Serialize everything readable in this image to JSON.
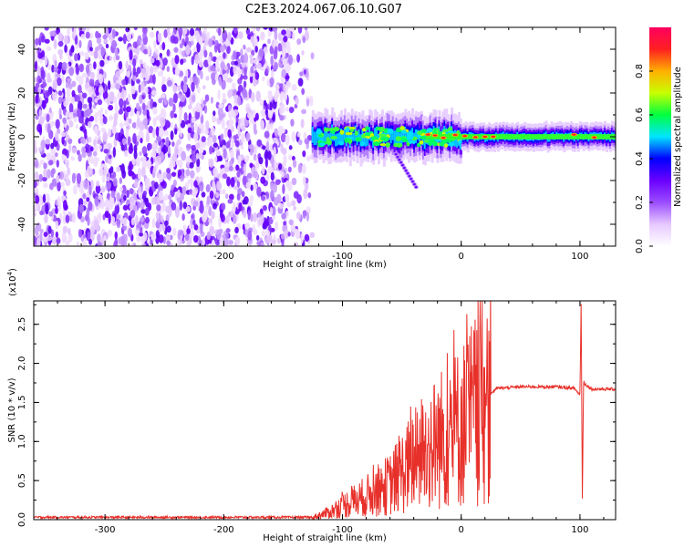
{
  "title": "C2E3.2024.067.06.10.G07",
  "chart_data": [
    {
      "type": "heatmap",
      "panel": "spectrogram",
      "xlabel": "Height of straight line (km)",
      "ylabel": "Frequency (Hz)",
      "xlim": [
        -360,
        130
      ],
      "ylim": [
        -50,
        50
      ],
      "xticks": [
        -300,
        -200,
        -100,
        0,
        100
      ],
      "yticks": [
        -40,
        -20,
        0,
        20,
        40
      ],
      "xtick_labels": [
        "-300",
        "-200",
        "-100",
        "0",
        "100"
      ],
      "ytick_labels": [
        "-40",
        "-20",
        "0",
        "20",
        "40"
      ],
      "colorbar": {
        "label": "Normalized spectral amplitude",
        "range": [
          0,
          1
        ],
        "ticks": [
          0.0,
          0.2,
          0.4,
          0.6,
          0.8
        ],
        "tick_labels": [
          "0.0",
          "0.2",
          "0.4",
          "0.6",
          "0.8"
        ],
        "colors": [
          "#ffffff",
          "#e6c8ff",
          "#9b4dff",
          "#6a00ff",
          "#0000ff",
          "#00e5ff",
          "#00ff40",
          "#c8ff00",
          "#ffb000",
          "#ff2020",
          "#ff0060"
        ]
      },
      "regions": {
        "noise_band": {
          "x": [
            -360,
            -125
          ],
          "freq": [
            -50,
            50
          ],
          "amplitude": 0.25
        },
        "signal_track": {
          "x": [
            -125,
            130
          ],
          "center_freq": 0,
          "amplitude_peak": 0.9
        },
        "fading_branch": {
          "x": [
            -55,
            -38
          ],
          "freq": [
            -8,
            -23
          ]
        }
      }
    },
    {
      "type": "line",
      "panel": "snr",
      "xlabel": "Height of straight line (km)",
      "ylabel": "SNR (10 * v/v)",
      "multiplier": "(x10",
      "multiplier_exp": "4",
      "multiplier_close": ")",
      "xlim": [
        -360,
        130
      ],
      "ylim": [
        0,
        2.8
      ],
      "xticks": [
        -300,
        -200,
        -100,
        0,
        100
      ],
      "yticks": [
        0.0,
        0.5,
        1.0,
        1.5,
        2.0,
        2.5
      ],
      "xtick_labels": [
        "-300",
        "-200",
        "-100",
        "0",
        "100"
      ],
      "ytick_labels": [
        "0.0",
        "0.5",
        "1.0",
        "1.5",
        "2.0",
        "2.5"
      ],
      "series": [
        {
          "name": "SNR",
          "color": "#e8302a",
          "points": [
            [
              -360,
              0.03
            ],
            [
              -300,
              0.03
            ],
            [
              -200,
              0.03
            ],
            [
              -125,
              0.03
            ],
            [
              -110,
              0.1
            ],
            [
              -100,
              0.18
            ],
            [
              -80,
              0.3
            ],
            [
              -60,
              0.45
            ],
            [
              -40,
              0.75
            ],
            [
              -20,
              1.0
            ],
            [
              0,
              1.2
            ],
            [
              20,
              1.55
            ],
            [
              30,
              1.68
            ],
            [
              50,
              1.7
            ],
            [
              80,
              1.7
            ],
            [
              95,
              1.68
            ],
            [
              100,
              1.6
            ],
            [
              101,
              2.8
            ],
            [
              102,
              0.25
            ],
            [
              103,
              1.75
            ],
            [
              110,
              1.67
            ],
            [
              130,
              1.67
            ]
          ]
        }
      ]
    }
  ]
}
